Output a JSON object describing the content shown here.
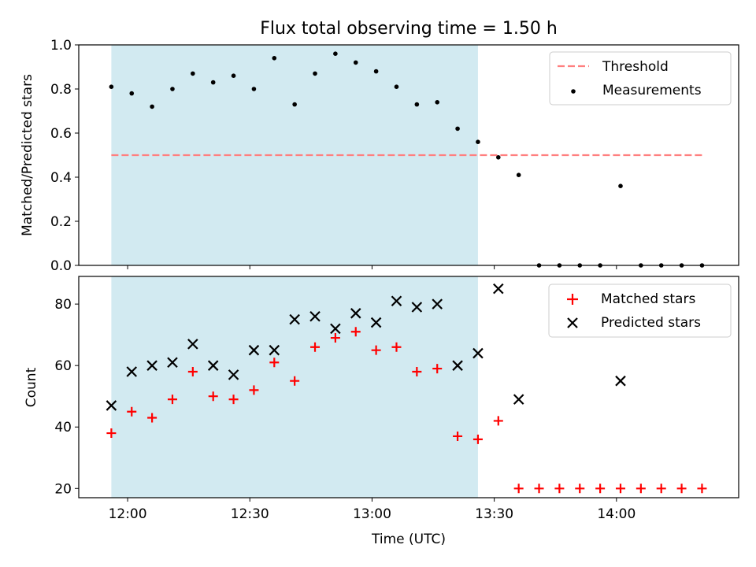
{
  "title": "Flux total observing time = 1.50 h",
  "colors": {
    "shade": "#add8e6",
    "threshold": "#ff7f7f",
    "measurement": "#000000",
    "matched": "#ff0000",
    "predicted": "#000000"
  },
  "chart_data": [
    {
      "type": "scatter",
      "panel": "top",
      "xlabel": "",
      "ylabel": "Matched/Predicted stars",
      "ylim": [
        0,
        1.0
      ],
      "xlim": [
        "11:48",
        "14:30"
      ],
      "yticks": [
        "0.0",
        "0.2",
        "0.4",
        "0.6",
        "0.8",
        "1.0"
      ],
      "shaded_interval": [
        "11:56",
        "13:26"
      ],
      "legend_position": "top-right",
      "threshold": {
        "name": "Threshold",
        "y": 0.5,
        "x_start": "11:56",
        "x_end": "14:21",
        "style": "dashed"
      },
      "series": [
        {
          "name": "Measurements",
          "x": [
            "11:56",
            "12:01",
            "12:06",
            "12:11",
            "12:16",
            "12:21",
            "12:26",
            "12:31",
            "12:36",
            "12:41",
            "12:46",
            "12:51",
            "12:56",
            "13:01",
            "13:06",
            "13:11",
            "13:16",
            "13:21",
            "13:26",
            "13:31",
            "13:36",
            "13:41",
            "13:46",
            "13:51",
            "13:56",
            "14:01",
            "14:06",
            "14:11",
            "14:16",
            "14:21"
          ],
          "y": [
            0.81,
            0.78,
            0.72,
            0.8,
            0.87,
            0.83,
            0.86,
            0.8,
            0.94,
            0.73,
            0.87,
            0.96,
            0.92,
            0.88,
            0.81,
            0.73,
            0.74,
            0.62,
            0.56,
            0.49,
            0.41,
            0.0,
            0.0,
            0.0,
            0.0,
            0.36,
            0.0,
            0.0,
            0.0,
            0.0
          ]
        }
      ]
    },
    {
      "type": "scatter",
      "panel": "bottom",
      "xlabel": "Time (UTC)",
      "ylabel": "Count",
      "ylim": [
        17,
        89
      ],
      "xlim": [
        "11:48",
        "14:30"
      ],
      "yticks": [
        "20",
        "40",
        "60",
        "80"
      ],
      "xticks": [
        "12:00",
        "12:30",
        "13:00",
        "13:30",
        "14:00"
      ],
      "shaded_interval": [
        "11:56",
        "13:26"
      ],
      "legend_position": "top-right",
      "series": [
        {
          "name": "Matched stars",
          "marker": "plus",
          "x": [
            "11:56",
            "12:01",
            "12:06",
            "12:11",
            "12:16",
            "12:21",
            "12:26",
            "12:31",
            "12:36",
            "12:41",
            "12:46",
            "12:51",
            "12:56",
            "13:01",
            "13:06",
            "13:11",
            "13:16",
            "13:21",
            "13:26",
            "13:31",
            "13:36",
            "13:41",
            "13:46",
            "13:51",
            "13:56",
            "14:01",
            "14:06",
            "14:11",
            "14:16",
            "14:21"
          ],
          "y": [
            38,
            45,
            43,
            49,
            58,
            50,
            49,
            52,
            61,
            55,
            66,
            69,
            71,
            65,
            66,
            58,
            59,
            37,
            36,
            42,
            20,
            20,
            20,
            20,
            20,
            20,
            20,
            20,
            20,
            20
          ]
        },
        {
          "name": "Predicted stars",
          "marker": "x",
          "x": [
            "11:56",
            "12:01",
            "12:06",
            "12:11",
            "12:16",
            "12:21",
            "12:26",
            "12:31",
            "12:36",
            "12:41",
            "12:46",
            "12:51",
            "12:56",
            "13:01",
            "13:06",
            "13:11",
            "13:16",
            "13:21",
            "13:26",
            "13:31",
            "13:36",
            "14:01"
          ],
          "y": [
            47,
            58,
            60,
            61,
            67,
            60,
            57,
            65,
            65,
            75,
            76,
            72,
            77,
            74,
            81,
            79,
            80,
            60,
            64,
            85,
            49,
            55
          ]
        }
      ]
    }
  ]
}
